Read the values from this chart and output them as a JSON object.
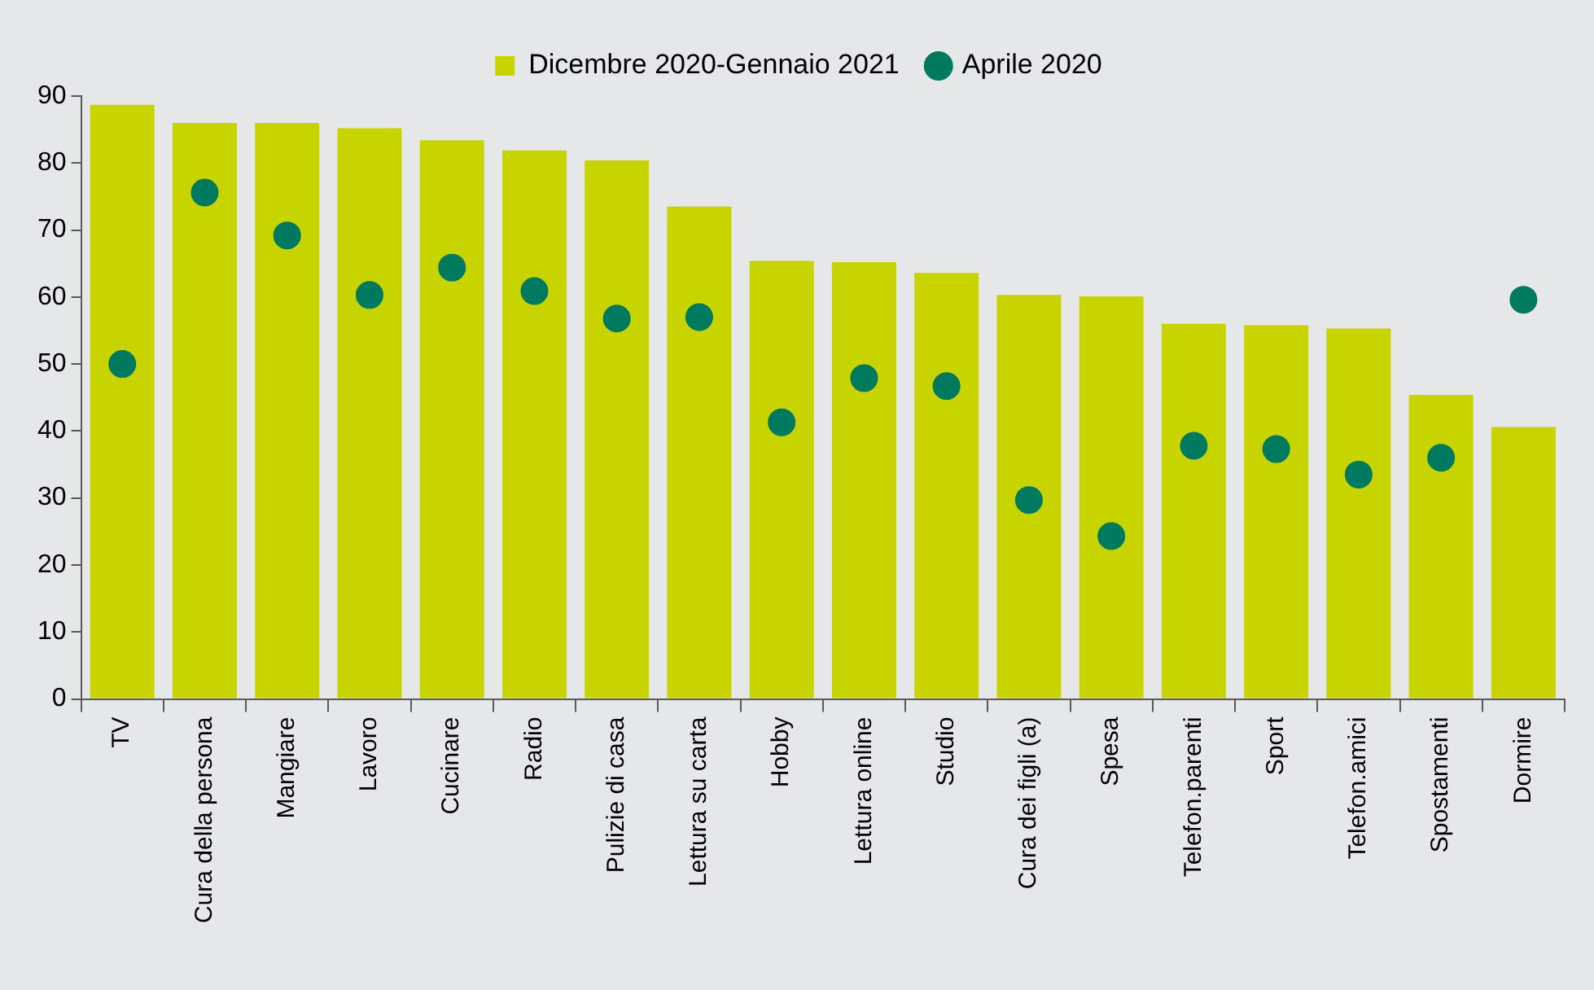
{
  "chart_data": {
    "type": "bar",
    "categories": [
      "TV",
      "Cura della persona",
      "Mangiare",
      "Lavoro",
      "Cucinare",
      "Radio",
      "Pulizie di casa",
      "Lettura su carta",
      "Hobby",
      "Lettura online",
      "Studio",
      "Cura dei figli (a)",
      "Spesa",
      "Telefon.parenti",
      "Sport",
      "Telefon.amici",
      "Spostamenti",
      "Dormire"
    ],
    "series": [
      {
        "name": "Dicembre 2020-Gennaio 2021",
        "color": "#c8d400",
        "values": [
          88.7,
          86.0,
          86.0,
          85.2,
          83.4,
          81.9,
          80.4,
          73.5,
          65.4,
          65.2,
          63.6,
          60.3,
          60.1,
          56.0,
          55.8,
          55.3,
          45.4,
          40.6
        ]
      },
      {
        "name": "Aprile 2020",
        "type": "scatter",
        "color": "#007a5e",
        "marker": "circle",
        "values": [
          50.0,
          75.6,
          69.2,
          60.3,
          64.4,
          60.9,
          56.8,
          57.0,
          41.3,
          47.9,
          46.7,
          29.7,
          24.3,
          37.8,
          37.3,
          33.5,
          36.0,
          59.6
        ]
      }
    ],
    "ylim": [
      0,
      90
    ],
    "yticks": [
      0,
      10,
      20,
      30,
      40,
      50,
      60,
      70,
      80,
      90
    ],
    "grid": false,
    "legend": "top"
  }
}
